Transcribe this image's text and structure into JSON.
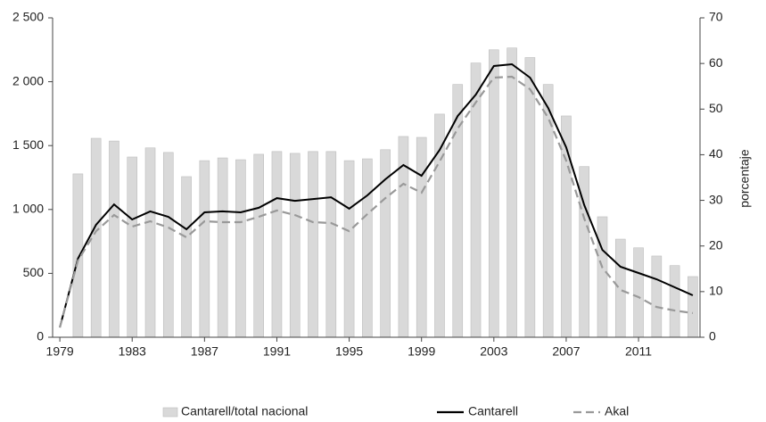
{
  "chart_data": {
    "type": "bar",
    "x": [
      1979,
      1980,
      1981,
      1982,
      1983,
      1984,
      1985,
      1986,
      1987,
      1988,
      1989,
      1990,
      1991,
      1992,
      1993,
      1994,
      1995,
      1996,
      1997,
      1998,
      1999,
      2000,
      2001,
      2002,
      2003,
      2004,
      2005,
      2006,
      2007,
      2008,
      2009,
      2010,
      2011,
      2012,
      2013,
      2014
    ],
    "xlim": [
      1978.6,
      2014.4
    ],
    "xticks": [
      1979,
      1983,
      1987,
      1991,
      1995,
      1999,
      2003,
      2007,
      2011
    ],
    "ylim": [
      0,
      2500
    ],
    "yticks": [
      0,
      500,
      {
        "value": 1000,
        "label": "1 000"
      },
      {
        "value": 1500,
        "label": "1 500"
      },
      {
        "value": 2000,
        "label": "2 000"
      },
      {
        "value": 2500,
        "label": "2 500"
      }
    ],
    "y2lim": [
      0,
      70
    ],
    "y2ticks": [
      0,
      10,
      20,
      30,
      40,
      50,
      60,
      70
    ],
    "y2label": "porcentaje",
    "legend": "bottom",
    "series": [
      {
        "name": "Cantarell/total nacional",
        "type": "bar",
        "axis": "y2",
        "color": "#d9d9d9",
        "values": [
          null,
          35.8,
          43.6,
          43.0,
          39.5,
          41.5,
          40.5,
          35.2,
          38.7,
          39.3,
          38.9,
          40.1,
          40.7,
          40.3,
          40.7,
          40.7,
          38.7,
          39.1,
          41.1,
          44.0,
          43.8,
          48.9,
          55.4,
          60.1,
          63.0,
          63.4,
          61.3,
          55.4,
          48.5,
          37.4,
          26.4,
          21.5,
          19.6,
          17.8,
          15.7,
          13.3
        ]
      },
      {
        "name": "Cantarell",
        "type": "line",
        "color": "#000000",
        "values": [
          77,
          615,
          880,
          1040,
          922,
          985,
          943,
          845,
          978,
          985,
          978,
          1013,
          1089,
          1068,
          1082,
          1096,
          1006,
          1110,
          1236,
          1348,
          1264,
          1466,
          1732,
          1899,
          2123,
          2137,
          2032,
          1795,
          1487,
          1034,
          684,
          552,
          503,
          454,
          391,
          328
        ]
      },
      {
        "name": "Akal",
        "type": "line",
        "dashed": true,
        "color": "#999999",
        "values": [
          77,
          600,
          830,
          957,
          866,
          908,
          859,
          782,
          908,
          901,
          901,
          943,
          992,
          957,
          901,
          894,
          830,
          964,
          1089,
          1201,
          1131,
          1376,
          1634,
          1837,
          2032,
          2039,
          1941,
          1718,
          1383,
          929,
          545,
          370,
          314,
          237,
          209,
          189
        ]
      }
    ]
  }
}
